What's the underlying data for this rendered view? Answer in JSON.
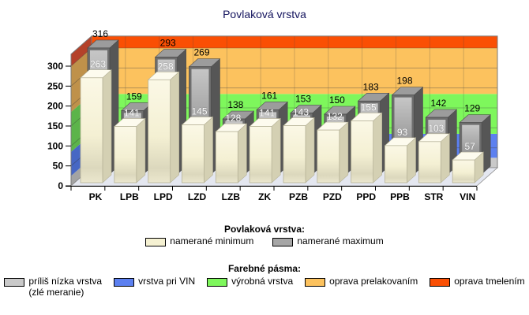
{
  "title": "Povlaková vrstva",
  "chart_data": {
    "type": "bar",
    "title": "Povlaková vrstva",
    "categories": [
      "PK",
      "LPB",
      "LPD",
      "LZD",
      "LZB",
      "ZK",
      "PZB",
      "PZD",
      "PPD",
      "PPB",
      "STR",
      "VIN"
    ],
    "series": [
      {
        "name": "namerané minimum",
        "values": [
          263,
          141,
          258,
          145,
          128,
          141,
          143,
          132,
          155,
          93,
          103,
          57
        ],
        "color": "#f5f1d2",
        "label_color": "#ffffff"
      },
      {
        "name": "namerané maximum",
        "values": [
          316,
          159,
          293,
          269,
          138,
          161,
          153,
          150,
          183,
          198,
          142,
          129
        ],
        "color": "#8f8f8f",
        "label_color": "#000000"
      }
    ],
    "xlabel": "",
    "ylabel": "",
    "y_ticks": [
      0,
      50,
      100,
      150,
      200,
      250,
      300
    ],
    "ylim": [
      0,
      330
    ],
    "grid": true,
    "legend_position": "bottom",
    "bands": [
      {
        "label": "príliš nízka vrstva (zlé meranie)",
        "from": 0,
        "to": 25,
        "wall": "#c9c9c9",
        "side": "#a3a3a3"
      },
      {
        "label": "vrstva pri VIN",
        "from": 25,
        "to": 85,
        "wall": "#5c80f0",
        "side": "#4767c4"
      },
      {
        "label": "výrobná vrstva",
        "from": 85,
        "to": 185,
        "wall": "#7ef75c",
        "side": "#5cb44a"
      },
      {
        "label": "oprava prelakovaním",
        "from": 185,
        "to": 300,
        "wall": "#fcc25e",
        "side": "#bf914a"
      },
      {
        "label": "oprava tmelením",
        "from": 300,
        "to": 330,
        "wall": "#fa4f04",
        "side": "#b4422a"
      }
    ],
    "floor_color": "#e4e7f0"
  },
  "legend_series": {
    "heading": "Povlaková vrstva:",
    "items": [
      {
        "label": "namerané minimum",
        "color": "#f5f1d2"
      },
      {
        "label": "namerané maximum",
        "color": "#a6a6a6"
      }
    ]
  },
  "legend_bands": {
    "heading": "Farebné pásma:",
    "items": [
      {
        "label": "príliš nízka vrstva",
        "label2": "(zlé meranie)",
        "color": "#c9c9c9"
      },
      {
        "label": "vrstva pri VIN",
        "color": "#5c80f0"
      },
      {
        "label": "výrobná vrstva",
        "color": "#7ef75c"
      },
      {
        "label": "oprava prelakovaním",
        "color": "#fcc25e"
      },
      {
        "label": "oprava tmelením",
        "color": "#fa4f04"
      }
    ]
  }
}
